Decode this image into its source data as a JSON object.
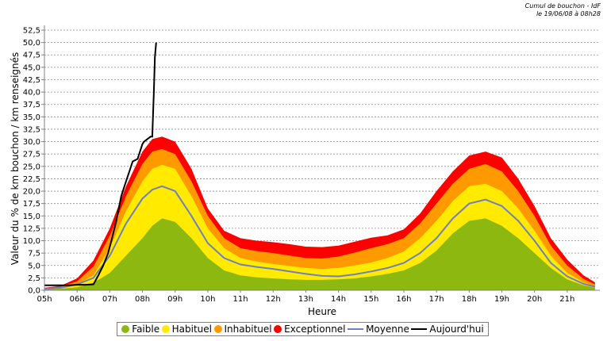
{
  "header": {
    "title": "Cumul de bouchon - IdF",
    "date": "le 19/06/08 à 08h28"
  },
  "chart_data": {
    "type": "area",
    "xlabel": "Heure",
    "ylabel": "Valeur du % de km bouchon / km renseignés",
    "ylim": [
      0,
      52.5
    ],
    "xlim": [
      5,
      22
    ],
    "x_ticks": [
      "05h",
      "06h",
      "07h",
      "08h",
      "09h",
      "10h",
      "11h",
      "12h",
      "13h",
      "14h",
      "15h",
      "16h",
      "17h",
      "18h",
      "19h",
      "20h",
      "21h"
    ],
    "y_ticks": [
      "0,0",
      "2,5",
      "5,0",
      "7,5",
      "10,0",
      "12,5",
      "15,0",
      "17,5",
      "20,0",
      "22,5",
      "25,0",
      "27,5",
      "30,0",
      "32,5",
      "35,0",
      "37,5",
      "40,0",
      "42,5",
      "45,0",
      "47,5",
      "50,0",
      "52,5"
    ],
    "grid": true,
    "legend_position": "bottom",
    "x": [
      5.0,
      5.5,
      6.0,
      6.5,
      7.0,
      7.5,
      8.0,
      8.3,
      8.6,
      9.0,
      9.5,
      10.0,
      10.5,
      11.0,
      11.5,
      12.0,
      12.5,
      13.0,
      13.5,
      14.0,
      14.5,
      15.0,
      15.5,
      16.0,
      16.5,
      17.0,
      17.5,
      18.0,
      18.5,
      19.0,
      19.5,
      20.0,
      20.5,
      21.0,
      21.5,
      21.85
    ],
    "series": [
      {
        "name": "Faible",
        "color": "#8db80f",
        "values": [
          0.2,
          0.3,
          0.6,
          1.5,
          3.5,
          7.0,
          10.5,
          13.0,
          14.5,
          13.8,
          10.5,
          6.5,
          4.0,
          3.0,
          2.6,
          2.4,
          2.2,
          2.1,
          2.1,
          2.2,
          2.4,
          2.8,
          3.3,
          4.0,
          5.5,
          8.0,
          11.5,
          14.0,
          14.5,
          13.0,
          10.5,
          7.5,
          4.5,
          2.2,
          1.0,
          0.5
        ]
      },
      {
        "name": "Habituel",
        "color": "#ffea00",
        "values": [
          0.3,
          0.5,
          1.2,
          3.0,
          8.5,
          16.0,
          22.0,
          24.5,
          25.3,
          24.5,
          19.0,
          12.5,
          8.5,
          6.5,
          5.8,
          5.3,
          4.9,
          4.5,
          4.3,
          4.5,
          5.0,
          5.6,
          6.5,
          7.8,
          10.5,
          14.0,
          18.0,
          21.0,
          21.5,
          20.0,
          16.5,
          12.0,
          7.0,
          3.5,
          1.6,
          0.8
        ]
      },
      {
        "name": "Inhabituel",
        "color": "#ff9900",
        "values": [
          0.4,
          0.7,
          1.8,
          4.8,
          11.0,
          19.0,
          25.5,
          28.0,
          28.5,
          27.5,
          22.0,
          15.0,
          10.5,
          8.5,
          7.9,
          7.5,
          7.0,
          6.5,
          6.4,
          6.8,
          7.6,
          8.5,
          9.3,
          10.5,
          13.5,
          17.5,
          21.5,
          24.5,
          25.5,
          24.0,
          20.0,
          15.0,
          9.0,
          5.0,
          2.3,
          1.2
        ]
      },
      {
        "name": "Exceptionnel",
        "color": "#ff0000",
        "values": [
          0.5,
          0.9,
          2.4,
          6.0,
          12.5,
          21.0,
          28.0,
          30.5,
          31.0,
          30.0,
          24.5,
          16.5,
          12.0,
          10.5,
          10.0,
          9.7,
          9.3,
          8.8,
          8.7,
          9.0,
          9.8,
          10.6,
          11.1,
          12.3,
          15.5,
          20.0,
          24.0,
          27.2,
          28.0,
          26.8,
          22.5,
          17.0,
          10.5,
          6.2,
          3.0,
          1.6
        ]
      },
      {
        "name": "Moyenne",
        "color": "#6f7fbf",
        "values": [
          0.3,
          0.5,
          1.2,
          2.5,
          7.0,
          13.5,
          18.5,
          20.3,
          21.0,
          20.0,
          15.0,
          9.5,
          6.5,
          5.2,
          4.7,
          4.3,
          3.8,
          3.3,
          2.9,
          2.8,
          3.2,
          3.8,
          4.5,
          5.5,
          7.5,
          10.5,
          14.5,
          17.5,
          18.3,
          17.0,
          14.0,
          10.0,
          5.5,
          2.8,
          1.3,
          0.7
        ]
      }
    ],
    "today": {
      "name": "Aujourd'hui",
      "color": "#000000",
      "x": [
        5.0,
        5.25,
        5.5,
        5.75,
        6.0,
        6.25,
        6.5,
        6.65,
        6.8,
        6.95,
        7.05,
        7.2,
        7.35,
        7.5,
        7.6,
        7.7,
        7.85,
        8.0,
        8.05,
        8.15,
        8.25,
        8.3,
        8.35,
        8.38,
        8.42
      ],
      "values": [
        1.0,
        1.0,
        1.0,
        1.0,
        1.1,
        1.1,
        1.2,
        3.0,
        5.0,
        7.5,
        10.0,
        14.0,
        19.0,
        22.0,
        24.0,
        26.0,
        26.5,
        29.5,
        30.0,
        30.5,
        31.0,
        31.0,
        40.0,
        47.0,
        50.0
      ]
    }
  }
}
